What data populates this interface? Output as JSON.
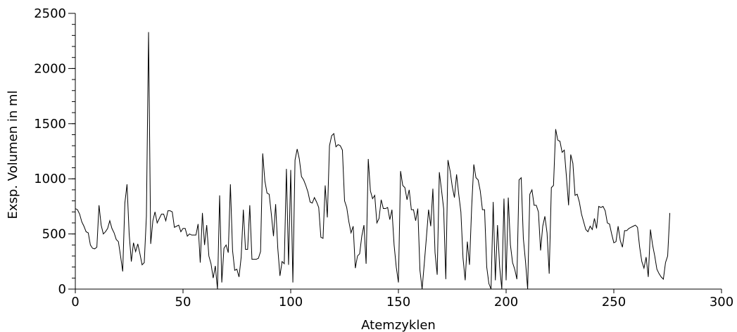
{
  "chart_data": {
    "type": "line",
    "title": "",
    "xlabel": "Atemzyklen",
    "ylabel": "Exsp. Volumen in ml",
    "xlim": [
      0,
      300
    ],
    "ylim": [
      0,
      2500
    ],
    "xticks": [
      0,
      50,
      100,
      150,
      200,
      250,
      300
    ],
    "yticks": [
      0,
      500,
      1000,
      1500,
      2000,
      2500
    ],
    "y_minor_step": 100,
    "grid": false,
    "legend": "none",
    "line_color": "#000000",
    "series": [
      {
        "values": [
          730,
          720,
          680,
          610,
          570,
          520,
          510,
          400,
          370,
          365,
          380,
          760,
          580,
          500,
          520,
          550,
          620,
          550,
          510,
          450,
          430,
          300,
          160,
          780,
          950,
          500,
          250,
          420,
          340,
          410,
          320,
          220,
          240,
          660,
          2330,
          410,
          620,
          700,
          600,
          640,
          680,
          680,
          620,
          710,
          710,
          700,
          560,
          570,
          580,
          520,
          550,
          550,
          480,
          500,
          490,
          490,
          490,
          590,
          240,
          690,
          400,
          580,
          300,
          230,
          100,
          210,
          0,
          850,
          60,
          370,
          400,
          330,
          950,
          350,
          170,
          180,
          110,
          290,
          720,
          360,
          360,
          760,
          270,
          270,
          270,
          280,
          340,
          1230,
          980,
          870,
          860,
          680,
          480,
          770,
          370,
          120,
          250,
          230,
          1090,
          220,
          1080,
          60,
          1170,
          1270,
          1180,
          1020,
          990,
          940,
          880,
          790,
          780,
          830,
          790,
          740,
          470,
          460,
          940,
          650,
          1300,
          1390,
          1410,
          1290,
          1310,
          1300,
          1260,
          800,
          740,
          610,
          510,
          570,
          190,
          300,
          320,
          480,
          580,
          230,
          1180,
          890,
          820,
          850,
          600,
          640,
          810,
          730,
          730,
          740,
          630,
          720,
          400,
          200,
          60,
          1070,
          940,
          920,
          810,
          900,
          720,
          720,
          620,
          730,
          170,
          0,
          230,
          470,
          720,
          570,
          910,
          330,
          130,
          1060,
          900,
          730,
          90,
          1170,
          1070,
          930,
          830,
          1040,
          860,
          700,
          280,
          80,
          430,
          220,
          740,
          1130,
          1010,
          990,
          890,
          720,
          720,
          200,
          50,
          0,
          790,
          80,
          580,
          200,
          0,
          820,
          80,
          830,
          400,
          240,
          180,
          90,
          990,
          1010,
          460,
          250,
          0,
          860,
          900,
          760,
          760,
          700,
          350,
          570,
          660,
          510,
          140,
          920,
          940,
          1450,
          1350,
          1340,
          1240,
          1260,
          1020,
          760,
          1220,
          1140,
          850,
          860,
          790,
          680,
          610,
          540,
          520,
          570,
          540,
          640,
          550,
          750,
          740,
          750,
          710,
          600,
          590,
          500,
          420,
          430,
          570,
          440,
          380,
          530,
          530,
          550,
          560,
          570,
          580,
          560,
          380,
          250,
          190,
          290,
          110,
          540,
          400,
          300,
          180,
          140,
          110,
          90,
          240,
          300,
          690
        ]
      }
    ]
  }
}
